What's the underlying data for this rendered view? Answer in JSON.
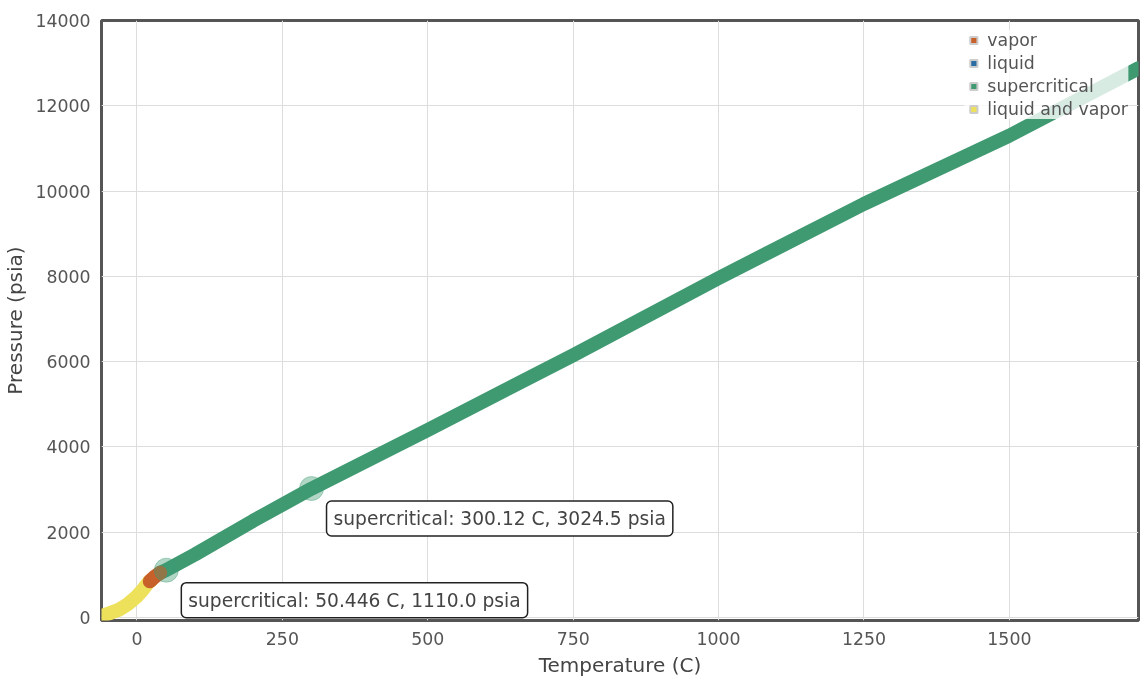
{
  "chart_data": {
    "type": "line",
    "xlabel": "Temperature (C)",
    "ylabel": "Pressure (psia)",
    "xlim": [
      -61,
      1722
    ],
    "ylim": [
      -70,
      14000
    ],
    "xticks": [
      0,
      250,
      500,
      750,
      1000,
      1250,
      1500
    ],
    "yticks": [
      0,
      2000,
      4000,
      6000,
      8000,
      10000,
      12000,
      14000
    ],
    "grid": true,
    "legend": "top right",
    "marker": "none",
    "line_style": "solid",
    "series": [
      {
        "name": "vapor",
        "color": "#c8602a",
        "x": [
          22,
          30,
          40
        ],
        "values": [
          850,
          950,
          1050
        ]
      },
      {
        "name": "liquid",
        "color": "#2e6da4"
      },
      {
        "name": "supercritical",
        "color": "#3f9a72",
        "x": [
          40,
          50,
          100,
          200,
          300,
          500,
          750,
          1000,
          1250,
          1500,
          1722
        ],
        "values": [
          1050,
          1110,
          1480,
          2270,
          3020,
          4400,
          6150,
          7960,
          9700,
          11300,
          12880
        ]
      },
      {
        "name": "liquid and vapor",
        "color": "#ede05a",
        "x": [
          -58,
          -45,
          -30,
          -15,
          0,
          10,
          20,
          25
        ],
        "values": [
          50,
          110,
          190,
          320,
          500,
          650,
          830,
          880
        ]
      }
    ],
    "annotations": [
      {
        "text": "supercritical: 50.446 C, 1110.0 psia",
        "x": 50.446,
        "y": 1110.0
      },
      {
        "text": "supercritical: 300.12 C, 3024.5 psia",
        "x": 300.12,
        "y": 3024.5
      }
    ]
  }
}
